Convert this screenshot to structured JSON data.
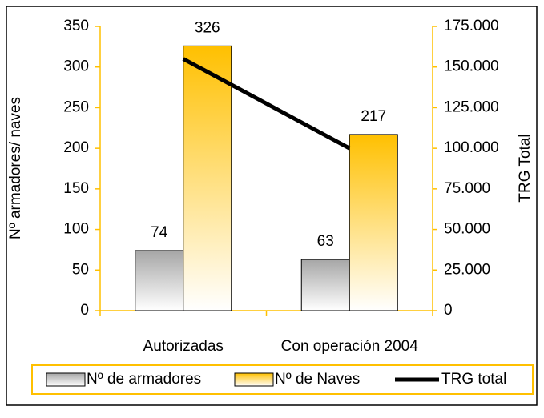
{
  "chart_data": {
    "type": "bar",
    "categories": [
      "Autorizadas",
      "Con operación 2004"
    ],
    "series": [
      {
        "name": "Nº de armadores",
        "color": "#a6a6a6",
        "values": [
          74,
          63
        ]
      },
      {
        "name": "Nº de Naves",
        "color": "#ffc000",
        "values": [
          326,
          217
        ]
      },
      {
        "name": "TRG total",
        "color": "#000000",
        "values": [
          155000,
          100000
        ],
        "axis": "y2",
        "type": "line"
      }
    ],
    "ylabel": "Nº armadores/ naves",
    "y2label": "TRG Total",
    "ylim": [
      0,
      350
    ],
    "yticks": [
      0,
      50,
      100,
      150,
      200,
      250,
      300,
      350
    ],
    "y2lim": [
      0,
      175000
    ],
    "y2ticks": [
      {
        "value": 0,
        "label": "0"
      },
      {
        "value": 25000,
        "label": "25.000"
      },
      {
        "value": 50000,
        "label": "50.000"
      },
      {
        "value": 75000,
        "label": "75.000"
      },
      {
        "value": 100000,
        "label": "100.000"
      },
      {
        "value": 125000,
        "label": "125.000"
      },
      {
        "value": 150000,
        "label": "150.000"
      },
      {
        "value": 175000,
        "label": "175.000"
      }
    ],
    "grid": false,
    "legend": "bottom"
  }
}
